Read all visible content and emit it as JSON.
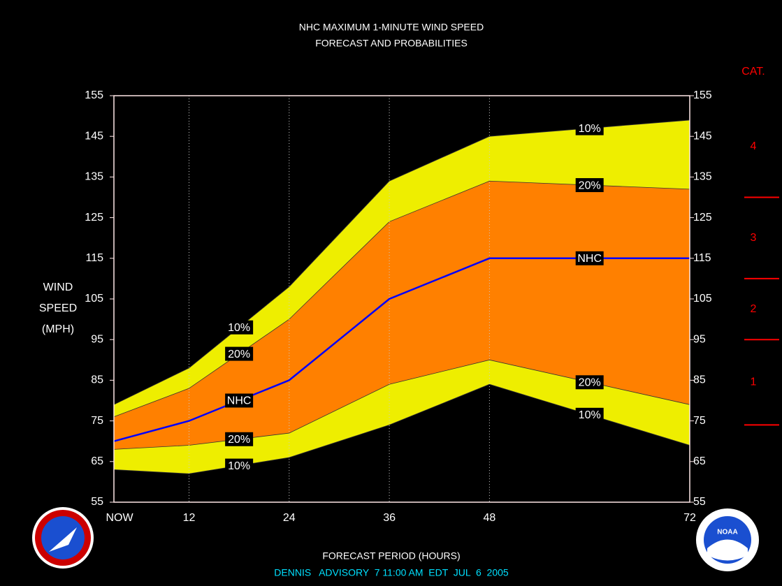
{
  "chart_data": {
    "type": "band",
    "title": "NHC MAXIMUM 1-MINUTE WIND SPEED",
    "subtitle": "FORECAST AND PROBABILITIES",
    "ylabel": [
      "WIND",
      "SPEED",
      "(MPH)"
    ],
    "xlabel": "FORECAST PERIOD (HOURS)",
    "footer": "DENNIS   ADVISORY  7 11:00 AM  EDT  JUL  6  2005",
    "x": [
      3,
      12,
      24,
      36,
      48,
      72
    ],
    "xlim": [
      3,
      72
    ],
    "xticks": [
      {
        "value": 3,
        "label": "NOW"
      },
      12,
      24,
      36,
      48,
      72
    ],
    "ylim": [
      55,
      155
    ],
    "yticks": [
      55,
      65,
      75,
      85,
      95,
      105,
      115,
      125,
      135,
      145,
      155
    ],
    "grid": true,
    "bands": [
      {
        "name": "10%",
        "color": "#eeee00",
        "upper": [
          79,
          88,
          108,
          134,
          145,
          149
        ],
        "lower": [
          63,
          62,
          66,
          74,
          84,
          69
        ]
      },
      {
        "name": "20%",
        "color": "#ff8000",
        "upper": [
          76,
          83,
          100,
          124,
          134,
          132
        ],
        "lower": [
          68,
          69,
          72,
          84,
          90,
          79
        ]
      }
    ],
    "line": {
      "name": "NHC",
      "color": "#0000ff",
      "values": [
        70,
        75,
        85,
        105,
        115,
        115
      ]
    },
    "category_scale": {
      "title": "CAT.",
      "color": "#ff0000",
      "boundaries": [
        74,
        95,
        110,
        130
      ],
      "labels": [
        "1",
        "2",
        "3",
        "4"
      ]
    },
    "logo_text": "NOAA"
  }
}
